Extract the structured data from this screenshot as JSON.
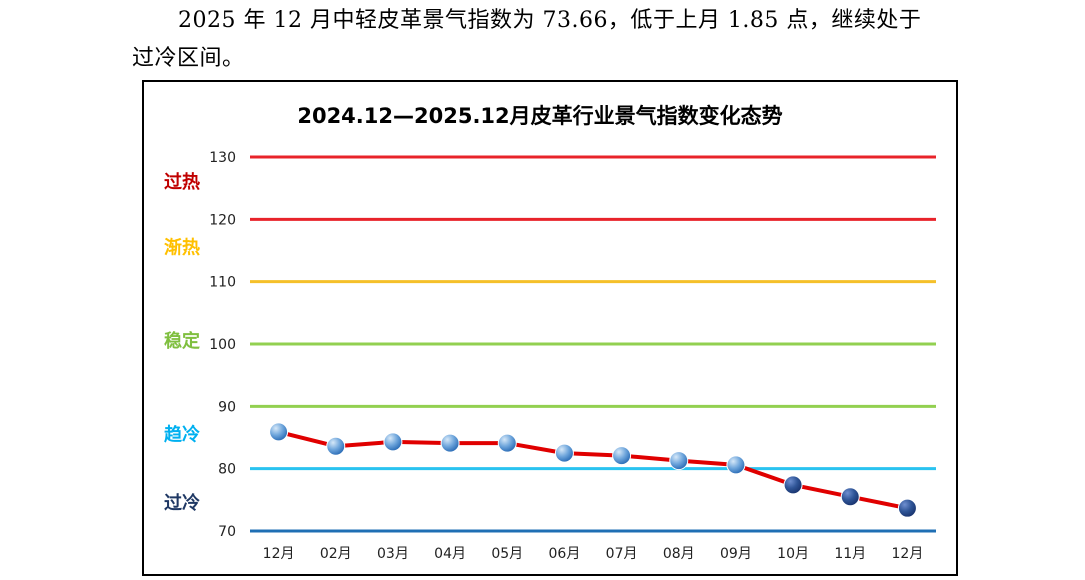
{
  "paragraph": {
    "line1": "2025 年 12 月中轻皮革景气指数为 73.66，低于上月 1.85 点，继续处于",
    "line2": "过冷区间。"
  },
  "chart_data": {
    "type": "line",
    "title": "2024.12—2025.12月皮革行业景气指数变化态势",
    "categories": [
      "12月",
      "02月",
      "03月",
      "04月",
      "05月",
      "06月",
      "07月",
      "08月",
      "09月",
      "10月",
      "11月",
      "12月"
    ],
    "series": [
      {
        "values": [
          85.9,
          83.6,
          84.3,
          84.1,
          84.1,
          82.5,
          82.1,
          81.3,
          80.6,
          77.4,
          75.5,
          73.66
        ]
      }
    ],
    "ylim": [
      70,
      130
    ],
    "yticks": [
      70,
      80,
      90,
      100,
      110,
      120,
      130
    ],
    "reference_lines": [
      {
        "value": 130,
        "color": "#e8232a"
      },
      {
        "value": 120,
        "color": "#e8232a"
      },
      {
        "value": 110,
        "color": "#f5c02a"
      },
      {
        "value": 100,
        "color": "#92d050"
      },
      {
        "value": 90,
        "color": "#92d050"
      },
      {
        "value": 80,
        "color": "#29c3f0"
      },
      {
        "value": 70,
        "color": "#1f6fb4"
      }
    ],
    "zones": [
      {
        "label": "过热",
        "value": 126,
        "color": "#c00000"
      },
      {
        "label": "渐热",
        "value": 115.5,
        "color": "#ffc000"
      },
      {
        "label": "稳定",
        "value": 100.5,
        "color": "#7fbf3f"
      },
      {
        "label": "趋冷",
        "value": 85.5,
        "color": "#00b0f0"
      },
      {
        "label": "过冷",
        "value": 74.5,
        "color": "#1f3864"
      }
    ],
    "line_color": "#e00000",
    "marker_colors": {
      "above_80": "#5b9bd5",
      "below_80": "#2f5597"
    }
  }
}
